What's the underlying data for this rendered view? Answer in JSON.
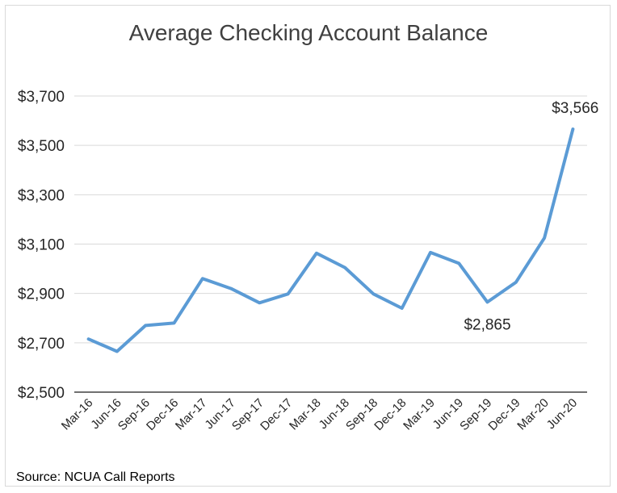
{
  "chart_data": {
    "type": "line",
    "title": "Average Checking Account Balance",
    "categories": [
      "Mar-16",
      "Jun-16",
      "Sep-16",
      "Dec-16",
      "Mar-17",
      "Jun-17",
      "Sep-17",
      "Dec-17",
      "Mar-18",
      "Jun-18",
      "Sep-18",
      "Dec-18",
      "Mar-19",
      "Jun-19",
      "Sep-19",
      "Dec-19",
      "Mar-20",
      "Jun-20"
    ],
    "values": [
      2715,
      2665,
      2770,
      2780,
      2960,
      2920,
      2862,
      2898,
      3063,
      3005,
      2898,
      2840,
      3066,
      3022,
      2865,
      2945,
      3125,
      3566
    ],
    "ylim": [
      2500,
      3700
    ],
    "yticks": [
      2500,
      2700,
      2900,
      3100,
      3300,
      3500,
      3700
    ],
    "ytick_labels": [
      "$2,500",
      "$2,700",
      "$2,900",
      "$3,100",
      "$3,300",
      "$3,500",
      "$3,700"
    ],
    "data_labels": [
      {
        "category": "Sep-19",
        "text": "$2,865"
      },
      {
        "category": "Jun-20",
        "text": "$3,566"
      }
    ],
    "grid": "horizontal",
    "line_color": "#5b9bd5"
  },
  "source": "Source: NCUA Call Reports"
}
